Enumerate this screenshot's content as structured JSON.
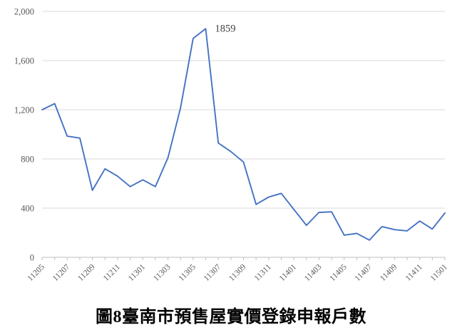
{
  "chart_data": {
    "type": "line",
    "title": "圖8臺南市預售屋實價登錄申報戶數",
    "x": [
      "11205",
      "11206",
      "11207",
      "11208",
      "11209",
      "11210",
      "11211",
      "11212",
      "11301",
      "11302",
      "11303",
      "11304",
      "11305",
      "11306",
      "11307",
      "11308",
      "11309",
      "11310",
      "11311",
      "11312",
      "11401",
      "11402",
      "11403",
      "11404",
      "11405",
      "11406",
      "11407",
      "11408",
      "11409",
      "11410",
      "11411",
      "11412",
      "11501"
    ],
    "values": [
      1200,
      1250,
      985,
      970,
      545,
      720,
      660,
      575,
      630,
      575,
      810,
      1215,
      1780,
      1859,
      930,
      860,
      775,
      430,
      490,
      520,
      390,
      260,
      365,
      370,
      180,
      195,
      140,
      250,
      225,
      215,
      295,
      230,
      360
    ],
    "x_tick_labels": [
      "11205",
      "11207",
      "11209",
      "11211",
      "11301",
      "11303",
      "11305",
      "11307",
      "11309",
      "11311",
      "11401",
      "11403",
      "11405",
      "11407",
      "11409",
      "11411",
      "11501"
    ],
    "y_ticks": [
      0,
      400,
      800,
      1200,
      1600,
      2000
    ],
    "y_tick_labels": [
      "0",
      "400",
      "800",
      "1,200",
      "1,600",
      "2,000"
    ],
    "ylim": [
      0,
      2000
    ],
    "grid": true,
    "legend": "none",
    "annotation": {
      "series_index": 13,
      "x": "11306",
      "text": "1859"
    },
    "colors": {
      "line": "#4472C4",
      "gridline": "#D9D9D9",
      "axis": "#BFBFBF",
      "tick_label": "#595959",
      "annotation_text": "#404040"
    }
  }
}
